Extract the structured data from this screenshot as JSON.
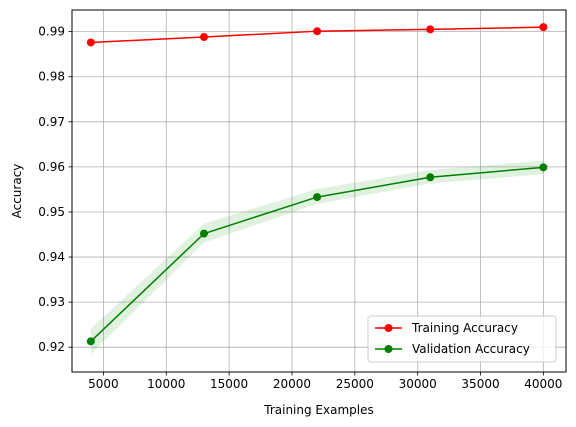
{
  "chart_data": {
    "type": "line",
    "title": "",
    "xlabel": "Training Examples",
    "ylabel": "Accuracy",
    "xlim": [
      2500,
      41800
    ],
    "ylim": [
      0.9145,
      0.9948
    ],
    "x_ticks": [
      5000,
      10000,
      15000,
      20000,
      25000,
      30000,
      35000,
      40000
    ],
    "y_ticks": [
      0.92,
      0.93,
      0.94,
      0.95,
      0.96,
      0.97,
      0.98,
      0.99
    ],
    "x_tick_labels": [
      "5000",
      "10000",
      "15000",
      "20000",
      "25000",
      "30000",
      "35000",
      "40000"
    ],
    "y_tick_labels": [
      "0.92",
      "0.93",
      "0.94",
      "0.95",
      "0.96",
      "0.97",
      "0.98",
      "0.99"
    ],
    "grid": true,
    "legend_position": "lower-right",
    "x": [
      4000,
      13000,
      22000,
      31000,
      40000
    ],
    "series": [
      {
        "name": "Training Accuracy",
        "color": "#ff0000",
        "marker": "circle",
        "values": [
          0.9876,
          0.9888,
          0.9901,
          0.9905,
          0.991
        ],
        "band_lower": [
          0.9876,
          0.9888,
          0.9901,
          0.9905,
          0.991
        ],
        "band_upper": [
          0.9876,
          0.9888,
          0.9901,
          0.9905,
          0.991
        ]
      },
      {
        "name": "Validation Accuracy",
        "color": "#008000",
        "band_color": "#2ca02c",
        "marker": "circle",
        "values": [
          0.9213,
          0.9452,
          0.9533,
          0.9577,
          0.9599
        ],
        "band_lower": [
          0.9185,
          0.9432,
          0.9518,
          0.9563,
          0.9584
        ],
        "band_upper": [
          0.9241,
          0.9474,
          0.9551,
          0.9593,
          0.9614
        ]
      }
    ]
  }
}
